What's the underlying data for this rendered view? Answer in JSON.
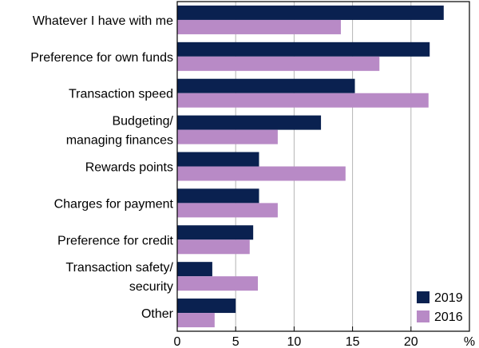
{
  "colors": {
    "series_2019": "#0a2150",
    "series_2016": "#b88ac6",
    "grid": "#b4b4b4",
    "frame": "#000000"
  },
  "chart_data": {
    "type": "bar",
    "orientation": "horizontal",
    "categories": [
      [
        "Whatever I have with me"
      ],
      [
        "Preference for own funds"
      ],
      [
        "Transaction speed"
      ],
      [
        "Budgeting/",
        "managing finances"
      ],
      [
        "Rewards points"
      ],
      [
        "Charges for payment"
      ],
      [
        "Preference for credit"
      ],
      [
        "Transaction safety/",
        "security"
      ],
      [
        "Other"
      ]
    ],
    "series": [
      {
        "name": "2019",
        "color": "#0a2150",
        "values": [
          22.8,
          21.6,
          15.2,
          12.3,
          7.0,
          7.0,
          6.5,
          3.0,
          5.0
        ]
      },
      {
        "name": "2016",
        "color": "#b88ac6",
        "values": [
          14.0,
          17.3,
          21.5,
          8.6,
          14.4,
          8.6,
          6.2,
          6.9,
          3.2
        ]
      }
    ],
    "xlim": [
      0,
      25
    ],
    "xticks": [
      0,
      5,
      10,
      15,
      20
    ],
    "unit": "%",
    "grid": "vertical",
    "legend": "bottom-right"
  }
}
